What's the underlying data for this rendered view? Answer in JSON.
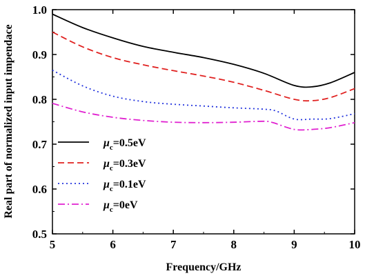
{
  "chart_data": {
    "type": "line",
    "title": "",
    "xlabel": "Frequency/GHz",
    "ylabel": "Real part of normalized input impendace",
    "xlim": [
      5,
      10
    ],
    "ylim": [
      0.5,
      1.0
    ],
    "xticks": [
      "5",
      "6",
      "7",
      "8",
      "9",
      "10"
    ],
    "yticks": [
      "0.5",
      "0.6",
      "0.7",
      "0.8",
      "0.9",
      "1.0"
    ],
    "grid": false,
    "legend_position": "lower-left",
    "series": [
      {
        "name": "0.5eV",
        "legend_mu": "μ",
        "legend_sub": "c",
        "legend_suffix": "=0.5eV",
        "color": "#000000",
        "dash": "solid",
        "x": [
          5.0,
          5.5,
          6.0,
          6.5,
          7.0,
          7.5,
          8.0,
          8.5,
          9.0,
          9.3,
          9.6,
          10.0
        ],
        "y": [
          0.99,
          0.96,
          0.937,
          0.918,
          0.905,
          0.893,
          0.878,
          0.858,
          0.831,
          0.828,
          0.837,
          0.86
        ]
      },
      {
        "name": "0.3eV",
        "legend_mu": "μ",
        "legend_sub": "c",
        "legend_suffix": "=0.3eV",
        "color": "#e0201f",
        "dash": "dashed",
        "x": [
          5.0,
          5.5,
          6.0,
          6.5,
          7.0,
          7.5,
          8.0,
          8.5,
          9.0,
          9.3,
          9.6,
          10.0
        ],
        "y": [
          0.95,
          0.917,
          0.893,
          0.877,
          0.864,
          0.852,
          0.838,
          0.82,
          0.8,
          0.797,
          0.804,
          0.824
        ]
      },
      {
        "name": "0.1eV",
        "legend_mu": "μ",
        "legend_sub": "c",
        "legend_suffix": "=0.1eV",
        "color": "#2233dd",
        "dash": "dotted",
        "x": [
          5.0,
          5.5,
          6.0,
          6.5,
          7.0,
          7.5,
          8.0,
          8.5,
          8.7,
          9.0,
          9.3,
          9.6,
          10.0
        ],
        "y": [
          0.865,
          0.83,
          0.807,
          0.795,
          0.789,
          0.785,
          0.781,
          0.778,
          0.774,
          0.756,
          0.756,
          0.757,
          0.768
        ]
      },
      {
        "name": "0eV",
        "legend_mu": "μ",
        "legend_sub": "c",
        "legend_suffix": "=0eV",
        "color": "#e020d0",
        "dash": "dashdot",
        "x": [
          5.0,
          5.5,
          6.0,
          6.5,
          7.0,
          7.5,
          8.0,
          8.5,
          8.65,
          9.0,
          9.3,
          9.6,
          10.0
        ],
        "y": [
          0.791,
          0.772,
          0.76,
          0.753,
          0.749,
          0.748,
          0.749,
          0.751,
          0.748,
          0.733,
          0.733,
          0.737,
          0.748
        ]
      }
    ]
  }
}
